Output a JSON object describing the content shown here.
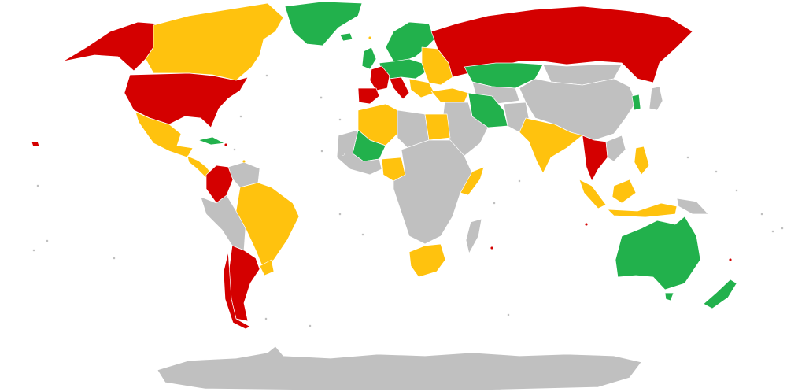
{
  "map": {
    "kind": "choropleth-world-map",
    "projection": "equirectangular",
    "legend": "",
    "palette": {
      "red": "#d40000",
      "yellow": "#ffc20e",
      "green": "#22b14c",
      "grey": "#c0c0c0",
      "background": "#ffffff",
      "border": "#ffffff"
    },
    "regions": [
      {
        "id": "alaska",
        "color": "red"
      },
      {
        "id": "canada",
        "color": "yellow"
      },
      {
        "id": "greenland",
        "color": "green"
      },
      {
        "id": "usa",
        "color": "red"
      },
      {
        "id": "mexico",
        "color": "yellow"
      },
      {
        "id": "central-america",
        "color": "yellow"
      },
      {
        "id": "cuba",
        "color": "green"
      },
      {
        "id": "colombia",
        "color": "red"
      },
      {
        "id": "venezuela",
        "color": "grey"
      },
      {
        "id": "brazil",
        "color": "yellow"
      },
      {
        "id": "peru-bolivia",
        "color": "grey"
      },
      {
        "id": "argentina",
        "color": "red"
      },
      {
        "id": "chile",
        "color": "red"
      },
      {
        "id": "uruguay",
        "color": "yellow"
      },
      {
        "id": "russia",
        "color": "red"
      },
      {
        "id": "scandinavia",
        "color": "green"
      },
      {
        "id": "uk",
        "color": "green"
      },
      {
        "id": "france",
        "color": "red"
      },
      {
        "id": "iberia",
        "color": "red"
      },
      {
        "id": "italy",
        "color": "red"
      },
      {
        "id": "central-europe",
        "color": "green"
      },
      {
        "id": "eastern-europe",
        "color": "yellow"
      },
      {
        "id": "kazakhstan",
        "color": "green"
      },
      {
        "id": "turkey",
        "color": "yellow"
      },
      {
        "id": "iran",
        "color": "green"
      },
      {
        "id": "china",
        "color": "grey"
      },
      {
        "id": "mongolia",
        "color": "grey"
      },
      {
        "id": "india",
        "color": "yellow"
      },
      {
        "id": "thailand",
        "color": "red"
      },
      {
        "id": "korea",
        "color": "green"
      },
      {
        "id": "japan",
        "color": "grey"
      },
      {
        "id": "indonesia",
        "color": "yellow"
      },
      {
        "id": "philippines",
        "color": "yellow"
      },
      {
        "id": "australia",
        "color": "green"
      },
      {
        "id": "new-zealand",
        "color": "green"
      },
      {
        "id": "algeria",
        "color": "yellow"
      },
      {
        "id": "mali",
        "color": "green"
      },
      {
        "id": "egypt",
        "color": "yellow"
      },
      {
        "id": "nigeria",
        "color": "yellow"
      },
      {
        "id": "somalia",
        "color": "yellow"
      },
      {
        "id": "south-africa",
        "color": "yellow"
      },
      {
        "id": "africa-rest",
        "color": "grey"
      },
      {
        "id": "madagascar",
        "color": "grey"
      },
      {
        "id": "antarctica",
        "color": "grey"
      }
    ]
  }
}
